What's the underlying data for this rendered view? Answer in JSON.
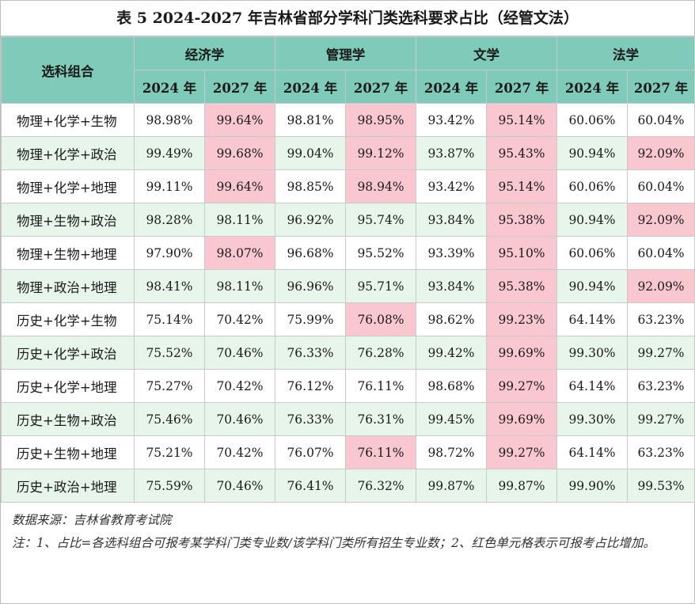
{
  "title": "表 5  2024-2027 年吉林省部分学科门类选科要求占比（经管文法）",
  "header": {
    "combo_label": "选科组合",
    "categories": [
      "经济学",
      "管理学",
      "文学",
      "法学"
    ],
    "years": [
      "2024 年",
      "2027 年"
    ]
  },
  "rows": [
    {
      "combo": "物理+化学+生物",
      "values": [
        "98.98%",
        "99.64%",
        "98.81%",
        "98.95%",
        "93.42%",
        "95.14%",
        "60.06%",
        "60.04%"
      ]
    },
    {
      "combo": "物理+化学+政治",
      "values": [
        "99.49%",
        "99.68%",
        "99.04%",
        "99.12%",
        "93.87%",
        "95.43%",
        "90.94%",
        "92.09%"
      ]
    },
    {
      "combo": "物理+化学+地理",
      "values": [
        "99.11%",
        "99.64%",
        "98.85%",
        "98.94%",
        "93.42%",
        "95.14%",
        "60.06%",
        "60.04%"
      ]
    },
    {
      "combo": "物理+生物+政治",
      "values": [
        "98.28%",
        "98.11%",
        "96.92%",
        "95.74%",
        "93.84%",
        "95.38%",
        "90.94%",
        "92.09%"
      ]
    },
    {
      "combo": "物理+生物+地理",
      "values": [
        "97.90%",
        "98.07%",
        "96.68%",
        "95.52%",
        "93.39%",
        "95.10%",
        "60.06%",
        "60.04%"
      ]
    },
    {
      "combo": "物理+政治+地理",
      "values": [
        "98.41%",
        "98.11%",
        "96.96%",
        "95.71%",
        "93.84%",
        "95.38%",
        "90.94%",
        "92.09%"
      ]
    },
    {
      "combo": "历史+化学+生物",
      "values": [
        "75.14%",
        "70.42%",
        "75.99%",
        "76.08%",
        "98.62%",
        "99.23%",
        "64.14%",
        "63.23%"
      ]
    },
    {
      "combo": "历史+化学+政治",
      "values": [
        "75.52%",
        "70.46%",
        "76.33%",
        "76.28%",
        "99.42%",
        "99.69%",
        "99.30%",
        "99.27%"
      ]
    },
    {
      "combo": "历史+化学+地理",
      "values": [
        "75.27%",
        "70.42%",
        "76.12%",
        "76.11%",
        "98.68%",
        "99.27%",
        "64.14%",
        "63.23%"
      ]
    },
    {
      "combo": "历史+生物+政治",
      "values": [
        "75.46%",
        "70.46%",
        "76.33%",
        "76.31%",
        "99.45%",
        "99.69%",
        "99.30%",
        "99.27%"
      ]
    },
    {
      "combo": "历史+生物+地理",
      "values": [
        "75.21%",
        "70.42%",
        "76.07%",
        "76.11%",
        "98.72%",
        "99.27%",
        "64.14%",
        "63.23%"
      ]
    },
    {
      "combo": "历史+政治+地理",
      "values": [
        "75.59%",
        "70.46%",
        "76.41%",
        "76.32%",
        "99.87%",
        "99.87%",
        "99.90%",
        "99.53%"
      ]
    }
  ],
  "highlighted_cells": [
    [
      0,
      1
    ],
    [
      0,
      3
    ],
    [
      0,
      5
    ],
    [
      1,
      1
    ],
    [
      1,
      3
    ],
    [
      1,
      5
    ],
    [
      1,
      7
    ],
    [
      2,
      1
    ],
    [
      2,
      3
    ],
    [
      2,
      5
    ],
    [
      3,
      5
    ],
    [
      3,
      7
    ],
    [
      4,
      1
    ],
    [
      4,
      5
    ],
    [
      5,
      5
    ],
    [
      5,
      7
    ],
    [
      6,
      3
    ],
    [
      6,
      5
    ],
    [
      7,
      5
    ],
    [
      8,
      5
    ],
    [
      9,
      5
    ],
    [
      10,
      3
    ],
    [
      10,
      5
    ]
  ],
  "colors": {
    "header_bg": "#7fcab9",
    "stripe_bg": "#e7f5ea",
    "highlight_bg": "#f8c7cf"
  },
  "notes": {
    "source": "数据来源：吉林省教育考试院",
    "note": "注：1、占比=各选科组合可报考某学科门类专业数/该学科门类所有招生专业数；2、红色单元格表示可报考占比增加。"
  }
}
